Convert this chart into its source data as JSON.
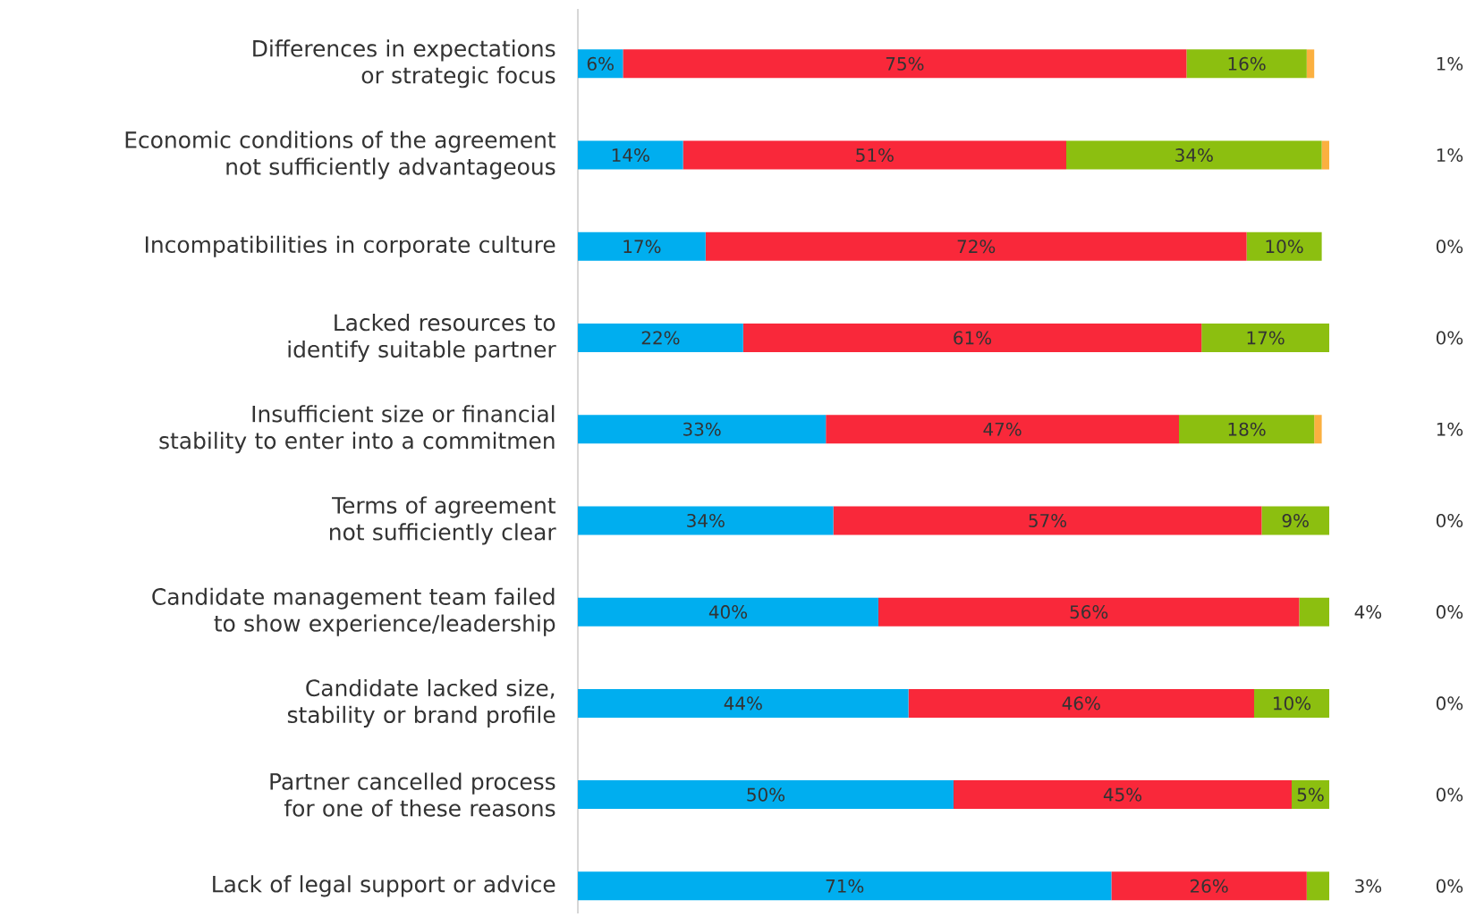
{
  "chart_data": {
    "type": "bar",
    "orientation": "horizontal",
    "stacked": true,
    "tick_labels": "y",
    "xlim": [
      0,
      100
    ],
    "categories": [
      "Differences in expectations or strategic focus",
      "Economic conditions of the agreement not sufficiently advantageous",
      "Incompatibilities in corporate culture",
      "Lacked resources to identify suitable partner",
      "Insufficient size or financial stability to enter into a commitmen",
      "Terms of agreement not sufficiently clear",
      "Candidate management team failed to show experience/leadership",
      "Candidate lacked size, stability or brand profile",
      "Partner cancelled process for one of these reasons",
      "Lack of legal support or advice"
    ],
    "series": [
      {
        "color": "#00aeef",
        "values": [
          6,
          14,
          17,
          22,
          33,
          34,
          40,
          44,
          50,
          71
        ],
        "value_labels": [
          "6%",
          "14%",
          "17%",
          "22%",
          "33%",
          "34%",
          "40%",
          "44%",
          "50%",
          "71%"
        ]
      },
      {
        "color": "#f9283a",
        "values": [
          75,
          51,
          72,
          61,
          47,
          57,
          56,
          46,
          45,
          26
        ],
        "value_labels": [
          "75%",
          "51%",
          "72%",
          "61%",
          "47%",
          "57%",
          "56%",
          "46%",
          "45%",
          "26%"
        ]
      },
      {
        "color": "#8cbf10",
        "values": [
          16,
          34,
          10,
          17,
          18,
          9,
          4,
          10,
          5,
          3
        ],
        "value_labels": [
          "16%",
          "34%",
          "10%",
          "17%",
          "18%",
          "9%",
          "4%",
          "10%",
          "5%",
          "3%"
        ]
      },
      {
        "color": "#fbb040",
        "values": [
          1,
          1,
          0,
          0,
          1,
          0,
          0,
          0,
          0,
          0
        ],
        "value_labels": [
          "1%",
          "1%",
          "0%",
          "0%",
          "1%",
          "0%",
          "0%",
          "0%",
          "0%",
          "0%"
        ]
      }
    ]
  }
}
